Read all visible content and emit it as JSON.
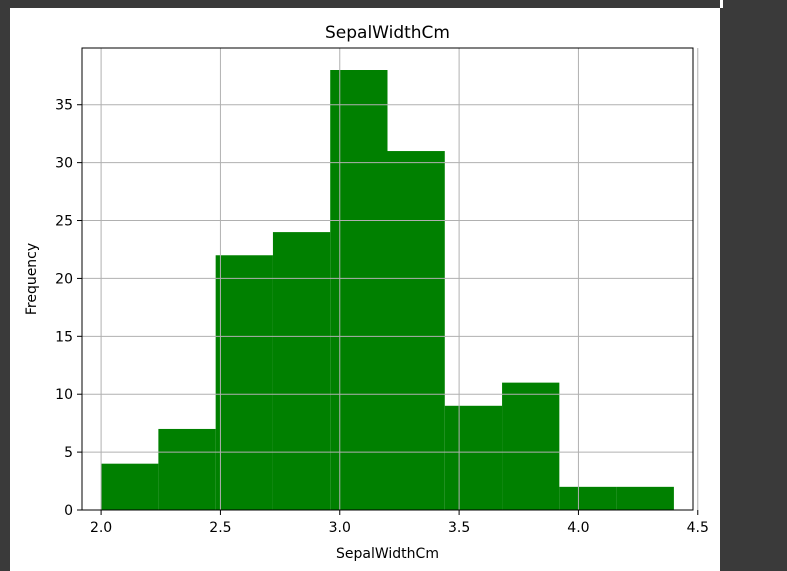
{
  "chart_data": {
    "type": "bar",
    "title": "SepalWidthCm",
    "xlabel": "SepalWidthCm",
    "ylabel": "Frequency",
    "bin_edges": [
      2.0,
      2.24,
      2.48,
      2.72,
      2.96,
      3.2,
      3.44,
      3.68,
      3.92,
      4.16,
      4.4
    ],
    "values": [
      4,
      7,
      22,
      24,
      38,
      31,
      9,
      11,
      2,
      2
    ],
    "xlim": [
      1.92,
      4.48
    ],
    "ylim": [
      0,
      39.9
    ],
    "xticks": [
      2.0,
      2.5,
      3.0,
      3.5,
      4.0,
      4.5
    ],
    "xtick_labels": [
      "2.0",
      "2.5",
      "3.0",
      "3.5",
      "4.0",
      "4.5"
    ],
    "yticks": [
      0,
      5,
      10,
      15,
      20,
      25,
      30,
      35
    ],
    "ytick_labels": [
      "0",
      "5",
      "10",
      "15",
      "20",
      "25",
      "30",
      "35"
    ],
    "grid": true,
    "bar_color": "#008000",
    "grid_color": "#b0b0b0"
  }
}
